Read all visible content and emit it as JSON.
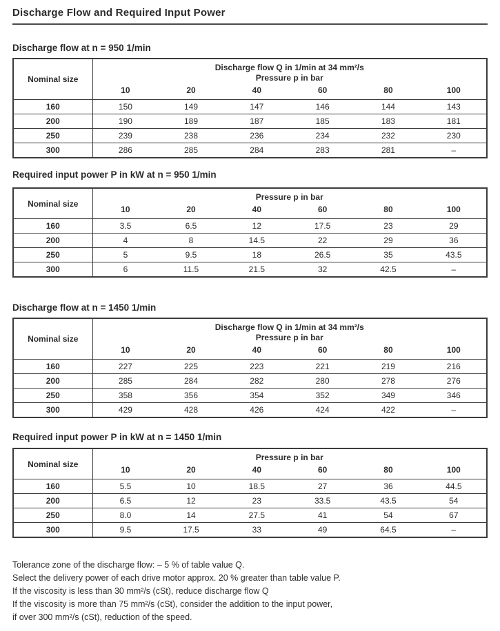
{
  "page": {
    "title": "Discharge Flow and Required Input Power"
  },
  "tables": [
    {
      "heading": "Discharge flow at n = 950 1/min",
      "nominal_label": "Nominal size",
      "header_lines": [
        "Discharge flow Q in 1/min at 34 mm²/s",
        "Pressure p in bar"
      ],
      "pressures": [
        "10",
        "20",
        "40",
        "60",
        "80",
        "100"
      ],
      "rows": [
        {
          "size": "160",
          "values": [
            "150",
            "149",
            "147",
            "146",
            "144",
            "143"
          ]
        },
        {
          "size": "200",
          "values": [
            "190",
            "189",
            "187",
            "185",
            "183",
            "181"
          ]
        },
        {
          "size": "250",
          "values": [
            "239",
            "238",
            "236",
            "234",
            "232",
            "230"
          ]
        },
        {
          "size": "300",
          "values": [
            "286",
            "285",
            "284",
            "283",
            "281",
            "–"
          ]
        }
      ]
    },
    {
      "heading": "Required input power P in kW at n = 950 1/min",
      "nominal_label": "Nominal size",
      "header_lines": [
        "Pressure p in bar"
      ],
      "pressures": [
        "10",
        "20",
        "40",
        "60",
        "80",
        "100"
      ],
      "rows": [
        {
          "size": "160",
          "values": [
            "3.5",
            "6.5",
            "12",
            "17.5",
            "23",
            "29"
          ]
        },
        {
          "size": "200",
          "values": [
            "4",
            "8",
            "14.5",
            "22",
            "29",
            "36"
          ]
        },
        {
          "size": "250",
          "values": [
            "5",
            "9.5",
            "18",
            "26.5",
            "35",
            "43.5"
          ]
        },
        {
          "size": "300",
          "values": [
            "6",
            "11.5",
            "21.5",
            "32",
            "42.5",
            "–"
          ]
        }
      ]
    },
    {
      "heading": "Discharge flow at n = 1450 1/min",
      "nominal_label": "Nominal size",
      "header_lines": [
        "Discharge flow Q in 1/min at 34 mm²/s",
        "Pressure p in bar"
      ],
      "pressures": [
        "10",
        "20",
        "40",
        "60",
        "80",
        "100"
      ],
      "rows": [
        {
          "size": "160",
          "values": [
            "227",
            "225",
            "223",
            "221",
            "219",
            "216"
          ]
        },
        {
          "size": "200",
          "values": [
            "285",
            "284",
            "282",
            "280",
            "278",
            "276"
          ]
        },
        {
          "size": "250",
          "values": [
            "358",
            "356",
            "354",
            "352",
            "349",
            "346"
          ]
        },
        {
          "size": "300",
          "values": [
            "429",
            "428",
            "426",
            "424",
            "422",
            "–"
          ]
        }
      ]
    },
    {
      "heading": "Required input power P in kW at n = 1450 1/min",
      "nominal_label": "Nominal size",
      "header_lines": [
        "Pressure p in bar"
      ],
      "pressures": [
        "10",
        "20",
        "40",
        "60",
        "80",
        "100"
      ],
      "rows": [
        {
          "size": "160",
          "values": [
            "5.5",
            "10",
            "18.5",
            "27",
            "36",
            "44.5"
          ]
        },
        {
          "size": "200",
          "values": [
            "6.5",
            "12",
            "23",
            "33.5",
            "43.5",
            "54"
          ]
        },
        {
          "size": "250",
          "values": [
            "8.0",
            "14",
            "27.5",
            "41",
            "54",
            "67"
          ]
        },
        {
          "size": "300",
          "values": [
            "9.5",
            "17.5",
            "33",
            "49",
            "64.5",
            "–"
          ]
        }
      ]
    }
  ],
  "notes": [
    "Tolerance zone of the discharge flow: – 5 % of table value Q.",
    "Select the delivery power of each drive motor approx. 20 % greater than table value P.",
    "If the viscosity is less than 30 mm²/s (cSt), reduce discharge flow Q",
    "If the viscosity is more than 75 mm²/s (cSt), consider the addition to the input power,",
    "if over 300 mm²/s (cSt), reduction of the speed."
  ]
}
